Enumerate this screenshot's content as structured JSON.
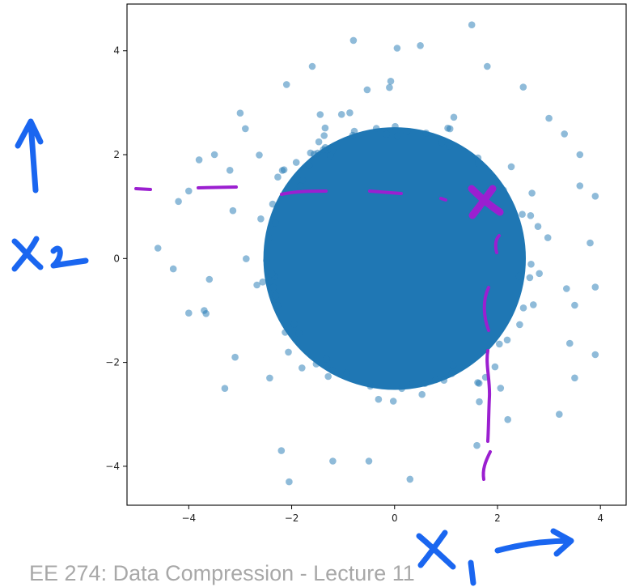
{
  "chart_data": {
    "type": "scatter",
    "title": "",
    "xlabel": "",
    "ylabel": "",
    "xlim": [
      -5.2,
      4.5
    ],
    "ylim": [
      -4.75,
      4.9
    ],
    "xticks": [
      -4,
      -2,
      0,
      2,
      4
    ],
    "yticks": [
      -4,
      -2,
      0,
      2,
      4
    ],
    "xtick_labels": [
      "−4",
      "−2",
      "0",
      "2",
      "4"
    ],
    "ytick_labels": [
      "−4",
      "−2",
      "0",
      "2",
      "4"
    ],
    "grid": false,
    "marker_color": "#1f77b4",
    "marker_alpha": 0.5,
    "series": [
      {
        "distribution": "2D standard normal, large sample (dense core within radius ~2.7)",
        "outlier_points": [
          [
            1.5,
            4.5
          ],
          [
            -0.8,
            4.2
          ],
          [
            0.05,
            4.05
          ],
          [
            0.5,
            4.1
          ],
          [
            1.8,
            3.7
          ],
          [
            -1.6,
            3.7
          ],
          [
            -2.1,
            3.35
          ],
          [
            2.5,
            3.3
          ],
          [
            3.0,
            2.7
          ],
          [
            3.3,
            2.4
          ],
          [
            3.6,
            2.0
          ],
          [
            3.6,
            1.4
          ],
          [
            3.9,
            1.2
          ],
          [
            3.8,
            0.3
          ],
          [
            3.9,
            -0.55
          ],
          [
            3.5,
            -0.9
          ],
          [
            3.9,
            -1.85
          ],
          [
            3.5,
            -2.3
          ],
          [
            3.2,
            -3.0
          ],
          [
            2.2,
            -3.1
          ],
          [
            1.6,
            -3.6
          ],
          [
            0.3,
            -4.25
          ],
          [
            -0.5,
            -3.9
          ],
          [
            -1.2,
            -3.9
          ],
          [
            -2.2,
            -3.7
          ],
          [
            -2.05,
            -4.3
          ],
          [
            -3.3,
            -2.5
          ],
          [
            -3.7,
            -1.0
          ],
          [
            -4.0,
            -1.05
          ],
          [
            -4.3,
            -0.2
          ],
          [
            -4.6,
            0.2
          ],
          [
            -4.2,
            1.1
          ],
          [
            -4.0,
            1.3
          ],
          [
            -3.5,
            2.0
          ],
          [
            -3.8,
            1.9
          ],
          [
            -3.0,
            2.8
          ],
          [
            -2.9,
            2.5
          ],
          [
            -3.2,
            1.7
          ],
          [
            -3.6,
            -0.4
          ],
          [
            -3.1,
            -1.9
          ]
        ]
      }
    ]
  },
  "annotations": {
    "x1_label": "x₁",
    "x2_label": "x₂",
    "x1_arrow": "arrow pointing right",
    "x2_arrow": "arrow pointing up",
    "marked_point": "×",
    "colors": {
      "axis_annotation_ink": "#1a66f0",
      "dashed_line_ink": "#9b1fd0"
    }
  },
  "footer": {
    "text": "EE 274: Data Compression - Lecture 11"
  }
}
